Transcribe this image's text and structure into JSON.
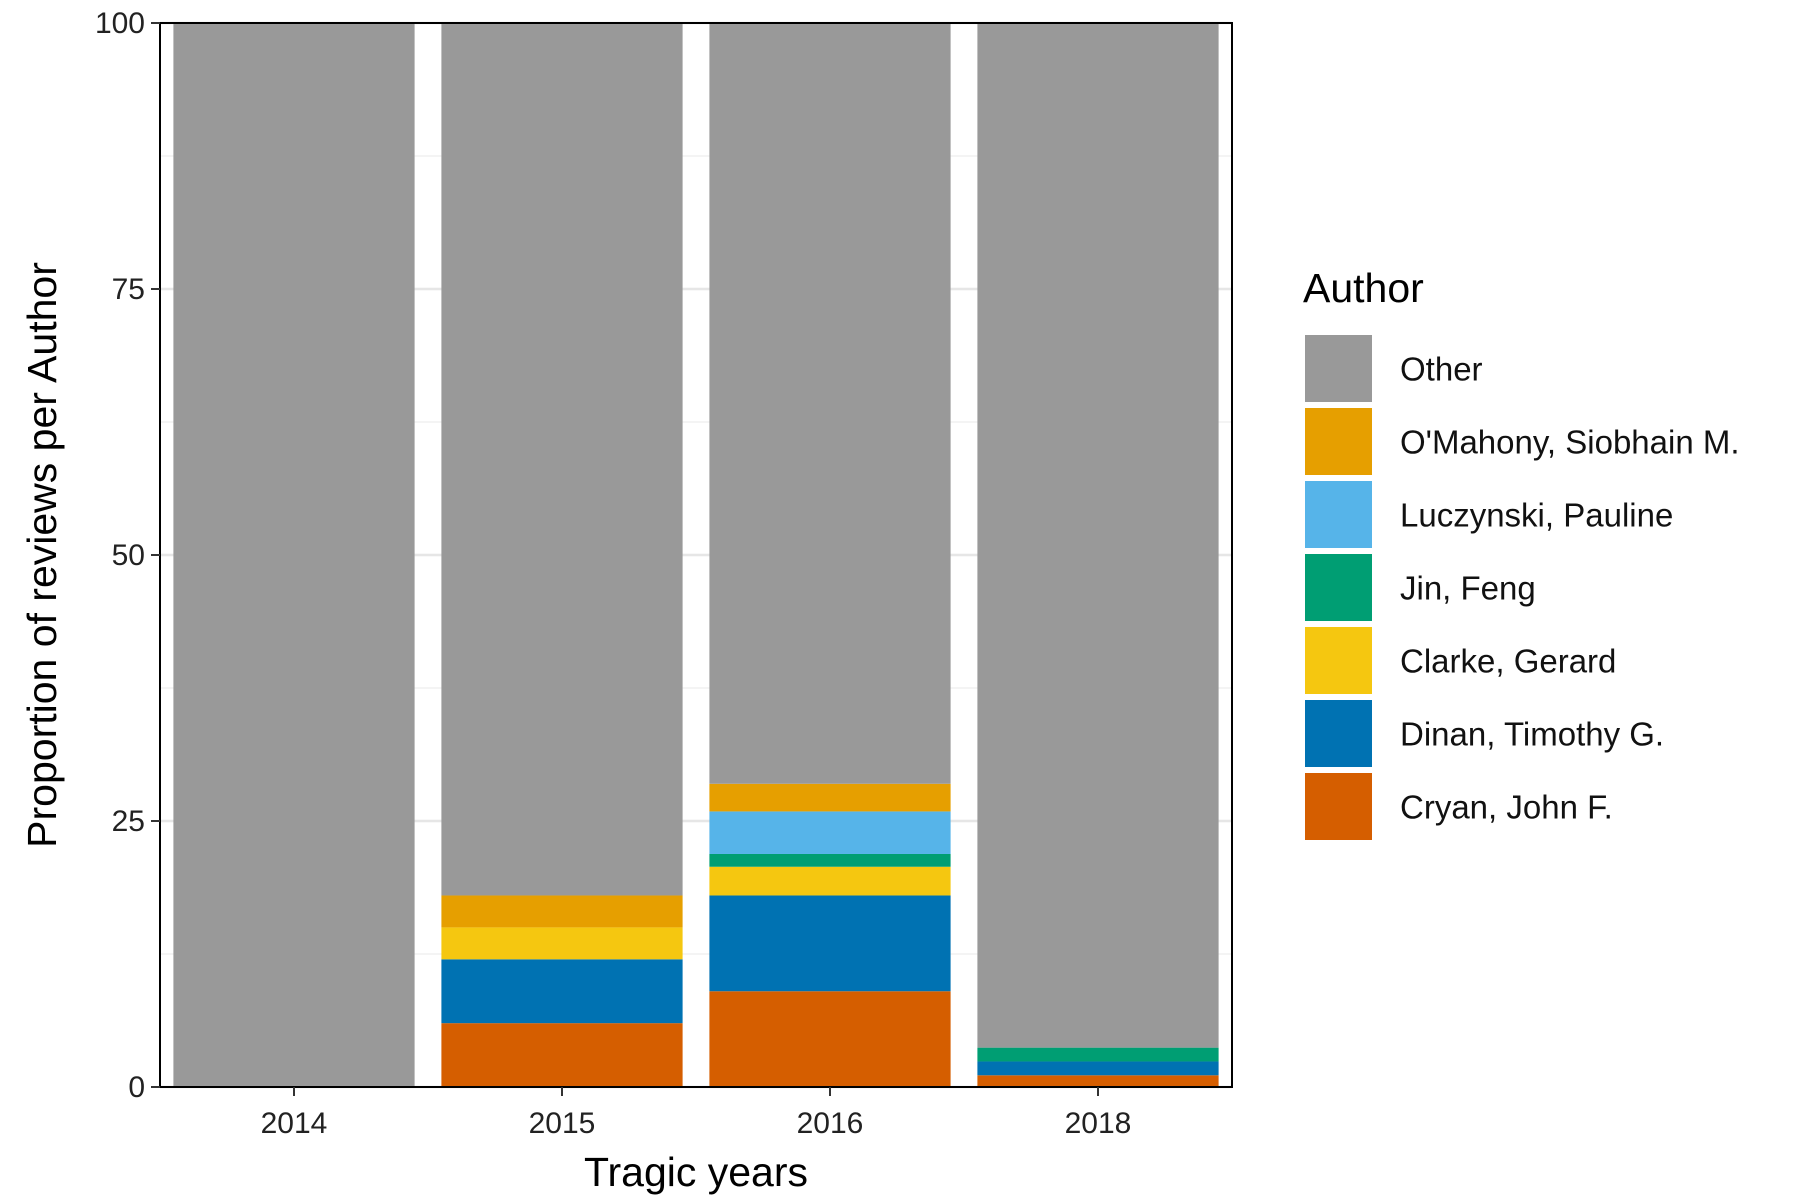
{
  "chart_data": {
    "type": "bar",
    "stacked": true,
    "title": "",
    "xlabel": "Tragic years",
    "ylabel": "Proportion of reviews per Author",
    "ylim": [
      0,
      100
    ],
    "yticks": [
      0,
      25,
      50,
      75,
      100
    ],
    "grid": true,
    "legend_title": "Author",
    "legend_position": "right",
    "categories": [
      "2014",
      "2015",
      "2016",
      "2018"
    ],
    "series": [
      {
        "name": "Cryan, John F.",
        "color": "#D55E00",
        "values": [
          0,
          6,
          9,
          1.1
        ]
      },
      {
        "name": "Dinan, Timothy G.",
        "color": "#0072B2",
        "values": [
          0,
          6,
          9,
          1.3
        ]
      },
      {
        "name": "Clarke, Gerard",
        "color": "#F5C710",
        "values": [
          0,
          3,
          2.7,
          0
        ]
      },
      {
        "name": "Jin, Feng",
        "color": "#009E73",
        "values": [
          0,
          0,
          1.2,
          1.3
        ]
      },
      {
        "name": "Luczynski, Pauline",
        "color": "#56B4E9",
        "values": [
          0,
          0,
          4,
          0
        ]
      },
      {
        "name": "O'Mahony, Siobhain M.",
        "color": "#E69F00",
        "values": [
          0,
          3,
          2.6,
          0
        ]
      },
      {
        "name": "Other",
        "color": "#999999",
        "values": [
          100,
          82,
          71.5,
          96.3
        ]
      }
    ],
    "legend_order": [
      "Other",
      "O'Mahony, Siobhain M.",
      "Luczynski, Pauline",
      "Jin, Feng",
      "Clarke, Gerard",
      "Dinan, Timothy G.",
      "Cryan, John F."
    ]
  }
}
